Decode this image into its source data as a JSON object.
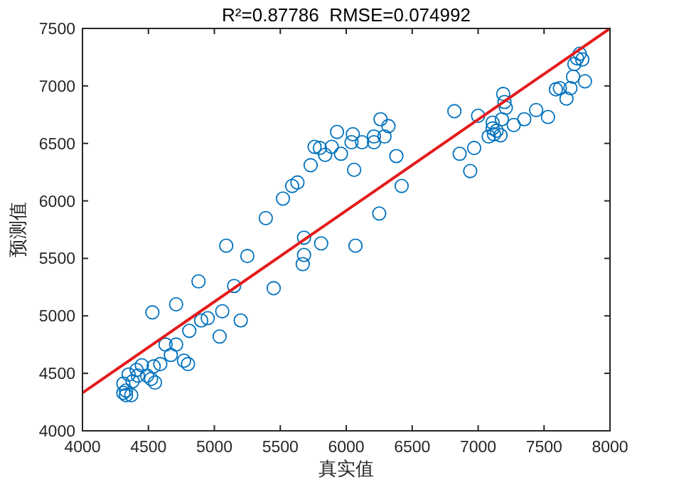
{
  "chart_data": {
    "type": "scatter",
    "title": "R²=0.87786  RMSE=0.074992",
    "xlabel": "真实值",
    "ylabel": "预测值",
    "xlim": [
      4000,
      8000
    ],
    "xticks": [
      4000,
      4500,
      5000,
      5500,
      6000,
      6500,
      7000,
      7500,
      8000
    ],
    "ylim": [
      4000,
      7500
    ],
    "yticks": [
      4000,
      4500,
      5000,
      5500,
      6000,
      6500,
      7000,
      7500
    ],
    "grid": false,
    "series": [
      {
        "marker": "circle",
        "color": "#0072bd",
        "x": [
          4310,
          4310,
          4330,
          4330,
          4370,
          4380,
          4350,
          4410,
          4420,
          4450,
          4490,
          4520,
          4550,
          4540,
          4590,
          4670,
          4770,
          4800,
          4630,
          4710,
          4810,
          5040,
          4530,
          4710,
          4900,
          4950,
          5060,
          5200,
          4880,
          5150,
          5450,
          5090,
          5250,
          5390,
          5680,
          5680,
          5670,
          5810,
          6070,
          5520,
          5590,
          5630,
          5730,
          5760,
          5800,
          5840,
          5890,
          5930,
          5960,
          6050,
          6040,
          6060,
          6120,
          6210,
          6210,
          6260,
          6320,
          6290,
          6380,
          6420,
          6250,
          6820,
          6860,
          6940,
          6970,
          7000,
          7110,
          7190,
          7200,
          7210,
          7180,
          7270,
          7080,
          7120,
          7140,
          7170,
          7110,
          7350,
          7440,
          7530,
          7590,
          7620,
          7670,
          7700,
          7720,
          7810,
          7730,
          7750,
          7790,
          7770
        ],
        "values": [
          4410,
          4330,
          4310,
          4350,
          4310,
          4430,
          4490,
          4530,
          4480,
          4570,
          4480,
          4450,
          4420,
          4560,
          4580,
          4660,
          4610,
          4580,
          4750,
          4750,
          4870,
          4820,
          5030,
          5100,
          4960,
          4980,
          5040,
          4960,
          5300,
          5260,
          5240,
          5610,
          5520,
          5850,
          5680,
          5530,
          5450,
          5630,
          5610,
          6020,
          6130,
          6160,
          6310,
          6470,
          6460,
          6400,
          6470,
          6600,
          6410,
          6580,
          6510,
          6270,
          6510,
          6560,
          6510,
          6710,
          6650,
          6560,
          6390,
          6130,
          5890,
          6780,
          6410,
          6260,
          6460,
          6740,
          6680,
          6930,
          6860,
          6810,
          6710,
          6660,
          6560,
          6580,
          6610,
          6570,
          6630,
          6710,
          6790,
          6730,
          6970,
          6980,
          6890,
          6980,
          7080,
          7040,
          7190,
          7240,
          7230,
          7280
        ]
      },
      {
        "type": "line",
        "marker": "none",
        "line_style": "solid",
        "color": "#e41a1c",
        "x": [
          4000,
          8000
        ],
        "values": [
          4330,
          7500
        ]
      }
    ]
  }
}
